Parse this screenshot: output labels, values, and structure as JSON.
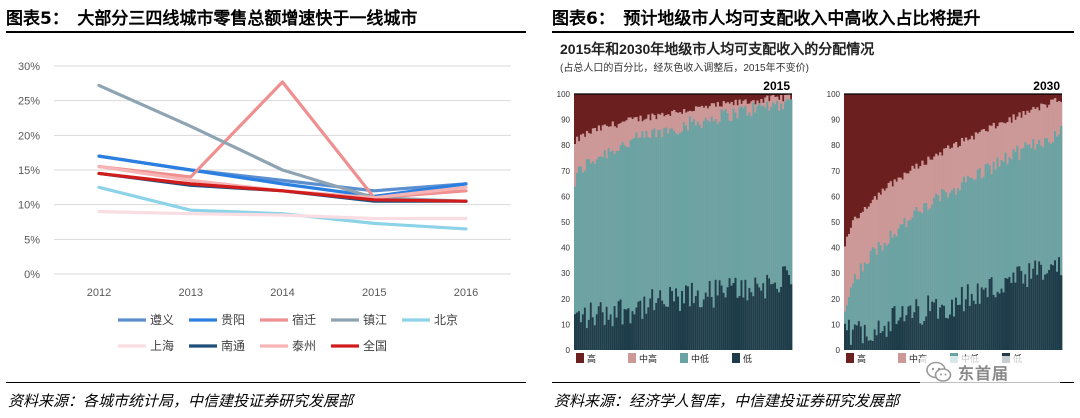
{
  "left_panel": {
    "title": "图表5：　大部分三四线城市零售总额增速快于一线城市",
    "source": "资料来源：各城市统计局，中信建投证券研究发展部"
  },
  "right_panel": {
    "title": "图表6：　预计地级市人均可支配收入中高收入占比将提升",
    "source": "资料来源：经济学人智库，中信建投证券研究发展部",
    "inner_title": "2015年和2030年地级市人均可支配收入的分配情况",
    "inner_subtitle": "(占总人口的百分比，经灰色收入调整后，2015年不变价)"
  },
  "watermark": {
    "text": "东首届"
  },
  "chart_data": [
    {
      "type": "line",
      "x": [
        "2012",
        "2013",
        "2014",
        "2015",
        "2016"
      ],
      "ylim": [
        0,
        30
      ],
      "yticks": [
        "0%",
        "5%",
        "10%",
        "15%",
        "20%",
        "25%",
        "30%"
      ],
      "grid": true,
      "legend_position": "bottom",
      "series": [
        {
          "name": "遵义",
          "color": "#5b8fd0",
          "values": [
            17.0,
            15.0,
            13.5,
            12.0,
            13.0
          ]
        },
        {
          "name": "贵阳",
          "color": "#2a7fe0",
          "values": [
            17.0,
            15.0,
            13.0,
            11.2,
            13.0
          ]
        },
        {
          "name": "宿迁",
          "color": "#ef8f8f",
          "values": [
            15.5,
            14.0,
            27.7,
            11.0,
            12.0
          ]
        },
        {
          "name": "镇江",
          "color": "#8ea4b3",
          "values": [
            27.2,
            21.3,
            15.0,
            11.0,
            10.5
          ]
        },
        {
          "name": "北京",
          "color": "#8dd3e8",
          "values": [
            12.5,
            9.2,
            8.7,
            7.3,
            6.5
          ]
        },
        {
          "name": "上海",
          "color": "#f9dde2",
          "values": [
            9.0,
            8.7,
            8.5,
            8.0,
            8.0
          ]
        },
        {
          "name": "南通",
          "color": "#1f4e79",
          "values": [
            14.5,
            12.8,
            12.0,
            10.5,
            10.5
          ]
        },
        {
          "name": "泰州",
          "color": "#f6b4b4",
          "values": [
            15.5,
            13.5,
            12.0,
            11.0,
            12.5
          ]
        },
        {
          "name": "全国",
          "color": "#d21c1c",
          "values": [
            14.5,
            13.0,
            12.0,
            10.7,
            10.5
          ]
        }
      ]
    },
    {
      "type": "area",
      "ylim": [
        0,
        100
      ],
      "yticks": [
        "0",
        "10",
        "20",
        "30",
        "40",
        "50",
        "60",
        "70",
        "80",
        "90",
        "100"
      ],
      "legend_position": "bottom",
      "categories": [
        "高",
        "中高",
        "中低",
        "低"
      ],
      "colors": {
        "高": "#6b1f1f",
        "中高": "#cc9898",
        "中低": "#6aa3a3",
        "低": "#1e3c49"
      },
      "panels": [
        {
          "label": "2015",
          "low_start": 10,
          "low_end": 25,
          "lowmid_start": 65,
          "lowmid_end": 97,
          "uppermid_start": 80,
          "uppermid_end": 99
        },
        {
          "label": "2030",
          "low_start": 3,
          "low_end": 30,
          "lowmid_start": 15,
          "lowmid_end": 85,
          "uppermid_start": 40,
          "uppermid_end": 98
        }
      ]
    }
  ]
}
